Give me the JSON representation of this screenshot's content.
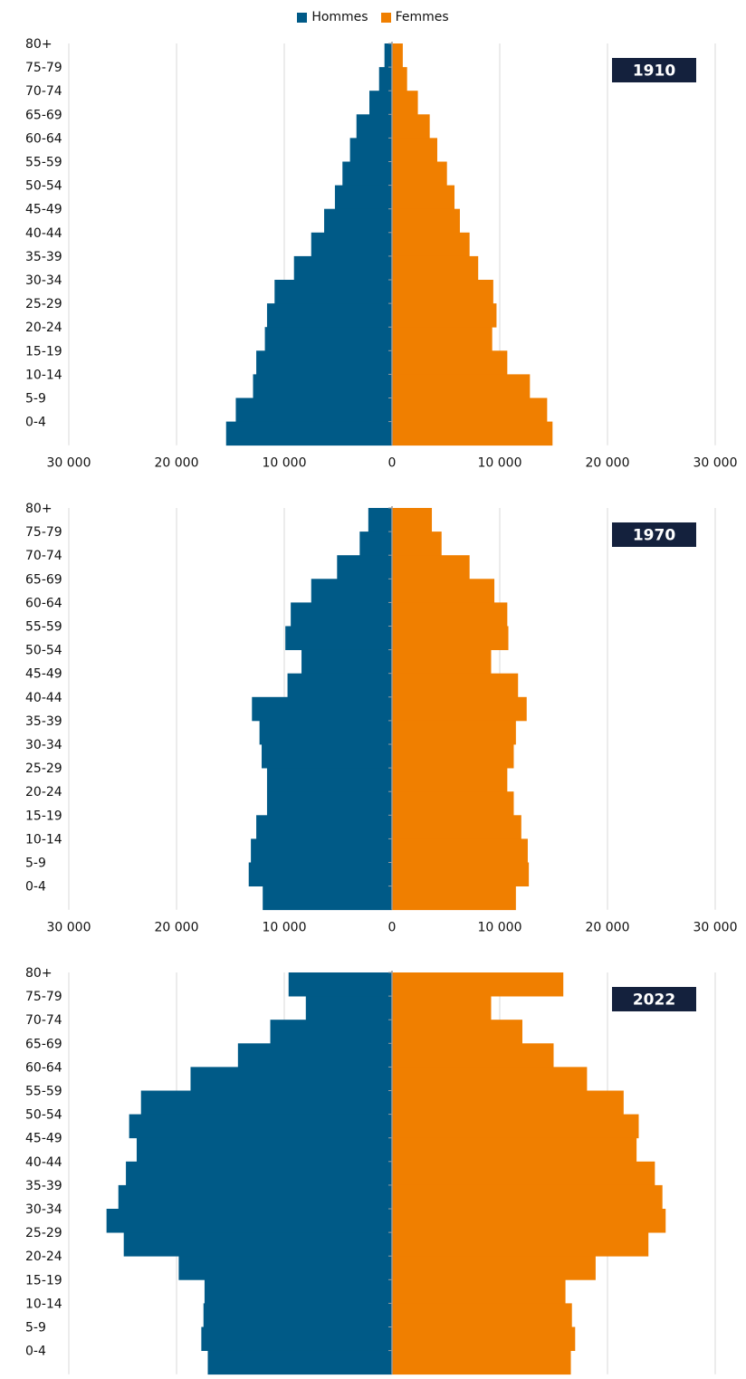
{
  "legend": {
    "men_label": "Hommes",
    "women_label": "Femmes"
  },
  "colors": {
    "men": "#005a87",
    "women": "#f07f00",
    "badge": "#14213d",
    "grid": "#d9d9d9",
    "axis": "#9a9a9a"
  },
  "chart_data": [
    {
      "type": "bar",
      "orientation": "horizontal-pyramid",
      "year_label": "1910",
      "categories": [
        "80+",
        "75-79",
        "70-74",
        "65-69",
        "60-64",
        "55-59",
        "50-54",
        "45-49",
        "40-44",
        "35-39",
        "30-34",
        "25-29",
        "20-24",
        "15-19",
        "10-14",
        "5-9",
        "0-4"
      ],
      "x_ticks": [
        "30 000",
        "20 000",
        "10 000",
        "0",
        "10 000",
        "20 000",
        "30 000"
      ],
      "xlim": [
        -30000,
        30000
      ],
      "series": [
        {
          "name": "Hommes",
          "values": [
            700,
            1200,
            2100,
            3300,
            3900,
            4600,
            5300,
            6300,
            7500,
            9100,
            10900,
            11600,
            11800,
            12600,
            12900,
            14500,
            15400
          ]
        },
        {
          "name": "Femmes",
          "values": [
            1000,
            1400,
            2400,
            3500,
            4200,
            5100,
            5800,
            6300,
            7200,
            8000,
            9400,
            9700,
            9300,
            10700,
            12800,
            14400,
            14900
          ]
        }
      ],
      "grid": true
    },
    {
      "type": "bar",
      "orientation": "horizontal-pyramid",
      "year_label": "1970",
      "categories": [
        "80+",
        "75-79",
        "70-74",
        "65-69",
        "60-64",
        "55-59",
        "50-54",
        "45-49",
        "40-44",
        "35-39",
        "30-34",
        "25-29",
        "20-24",
        "15-19",
        "10-14",
        "5-9",
        "0-4"
      ],
      "x_ticks": [
        "30 000",
        "20 000",
        "10 000",
        "0",
        "10 000",
        "20 000",
        "30 000"
      ],
      "xlim": [
        -30000,
        30000
      ],
      "series": [
        {
          "name": "Hommes",
          "values": [
            2200,
            3000,
            5100,
            7500,
            9400,
            9900,
            8400,
            9700,
            13000,
            12300,
            12100,
            11600,
            11600,
            12600,
            13100,
            13300,
            12000
          ]
        },
        {
          "name": "Femmes",
          "values": [
            3700,
            4600,
            7200,
            9500,
            10700,
            10800,
            9200,
            11700,
            12500,
            11500,
            11300,
            10700,
            11300,
            12000,
            12600,
            12700,
            11500
          ]
        }
      ],
      "grid": true
    },
    {
      "type": "bar",
      "orientation": "horizontal-pyramid",
      "year_label": "2022",
      "categories": [
        "80+",
        "75-79",
        "70-74",
        "65-69",
        "60-64",
        "55-59",
        "50-54",
        "45-49",
        "40-44",
        "35-39",
        "30-34",
        "25-29",
        "20-24",
        "15-19",
        "10-14",
        "5-9",
        "0-4"
      ],
      "x_ticks": [
        "30 000",
        "20 000",
        "10 000",
        "0",
        "10 000",
        "20 000",
        "30 000"
      ],
      "xlim": [
        -30000,
        30000
      ],
      "series": [
        {
          "name": "Hommes",
          "values": [
            9600,
            8000,
            11300,
            14300,
            18700,
            23300,
            24400,
            23700,
            24700,
            25400,
            26500,
            24900,
            19800,
            17400,
            17500,
            17700,
            17100
          ]
        },
        {
          "name": "Femmes",
          "values": [
            15900,
            9200,
            12100,
            15000,
            18100,
            21500,
            22900,
            22700,
            24400,
            25100,
            25400,
            23800,
            18900,
            16100,
            16700,
            17000,
            16600
          ]
        }
      ],
      "grid": true
    }
  ]
}
